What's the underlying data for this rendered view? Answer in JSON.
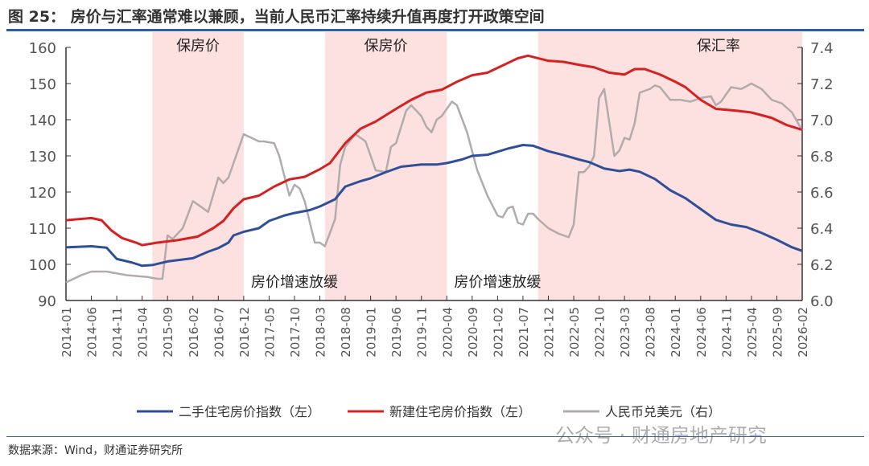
{
  "title": "图 25：  房价与汇率通常难以兼顾，当前人民币汇率持续升值再度打开政策空间",
  "source": "数据来源：Wind，财通证券研究所",
  "watermark": "公众号 · 财通房地产研究",
  "chart_data": {
    "type": "line",
    "title": "",
    "y_left": {
      "range": [
        90,
        160
      ],
      "ticks": [
        "90",
        "100",
        "110",
        "120",
        "130",
        "140",
        "150",
        "160"
      ]
    },
    "y_right": {
      "range": [
        6.0,
        7.4
      ],
      "ticks": [
        "6.0",
        "6.2",
        "6.4",
        "6.6",
        "6.8",
        "7.0",
        "7.2",
        "7.4"
      ]
    },
    "x_ticks": [
      "2014-01",
      "2014-06",
      "2014-11",
      "2015-04",
      "2015-09",
      "2016-02",
      "2016-07",
      "2016-12",
      "2017-05",
      "2017-10",
      "2018-03",
      "2018-08",
      "2019-01",
      "2019-06",
      "2019-11",
      "2020-04",
      "2020-09",
      "2021-02",
      "2021-07",
      "2021-12",
      "2022-05",
      "2022-10",
      "2023-03",
      "2023-08",
      "2024-01",
      "2024-06",
      "2024-11",
      "2025-04",
      "2025-09",
      "2026-02"
    ],
    "legend_position": "bottom",
    "shaded_periods": [
      {
        "start": "2015-06",
        "end": "2016-12",
        "label": "保房价",
        "bottom_label": ""
      },
      {
        "start": "2018-04",
        "end": "2020-04",
        "label": "保房价",
        "bottom_label": ""
      },
      {
        "start": "2021-10",
        "end": "2026-02",
        "label": "保汇率",
        "bottom_label": ""
      }
    ],
    "annotations": [
      {
        "text": "房价增速放缓",
        "near": "2017-10"
      },
      {
        "text": "房价增速放缓",
        "near": "2021-02"
      }
    ],
    "colors": {
      "shade": "#fde0e0",
      "blue": "#2f4f98",
      "red": "#d42222",
      "gray": "#b3abab"
    },
    "series": [
      {
        "name": "二手住宅房价指数（左）",
        "axis": "left",
        "color": "#2f4f98",
        "points": [
          [
            "2014-01",
            104.7
          ],
          [
            "2014-06",
            105.0
          ],
          [
            "2014-09",
            104.6
          ],
          [
            "2014-11",
            101.5
          ],
          [
            "2015-02",
            100.5
          ],
          [
            "2015-04",
            99.6
          ],
          [
            "2015-06",
            99.8
          ],
          [
            "2015-09",
            100.8
          ],
          [
            "2016-02",
            101.7
          ],
          [
            "2016-05",
            103.5
          ],
          [
            "2016-07",
            104.5
          ],
          [
            "2016-09",
            106
          ],
          [
            "2016-10",
            108
          ],
          [
            "2016-12",
            109
          ],
          [
            "2017-03",
            110
          ],
          [
            "2017-05",
            112
          ],
          [
            "2017-08",
            113.5
          ],
          [
            "2017-10",
            114.2
          ],
          [
            "2018-01",
            115
          ],
          [
            "2018-03",
            116
          ],
          [
            "2018-06",
            118
          ],
          [
            "2018-08",
            121.5
          ],
          [
            "2018-11",
            123
          ],
          [
            "2019-01",
            123.8
          ],
          [
            "2019-04",
            125.5
          ],
          [
            "2019-07",
            127
          ],
          [
            "2019-11",
            127.6
          ],
          [
            "2020-02",
            127.6
          ],
          [
            "2020-04",
            128
          ],
          [
            "2020-07",
            129
          ],
          [
            "2020-09",
            130
          ],
          [
            "2020-12",
            130.3
          ],
          [
            "2021-04",
            132
          ],
          [
            "2021-07",
            133
          ],
          [
            "2021-09",
            132.8
          ],
          [
            "2021-12",
            131.3
          ],
          [
            "2022-03",
            130.2
          ],
          [
            "2022-06",
            129
          ],
          [
            "2022-08",
            128.3
          ],
          [
            "2022-11",
            126.5
          ],
          [
            "2023-02",
            125.8
          ],
          [
            "2023-04",
            126.2
          ],
          [
            "2023-06",
            125.6
          ],
          [
            "2023-09",
            123.6
          ],
          [
            "2023-12",
            120.5
          ],
          [
            "2024-03",
            118.3
          ],
          [
            "2024-06",
            115.3
          ],
          [
            "2024-09",
            112.3
          ],
          [
            "2024-12",
            111
          ],
          [
            "2025-03",
            110.3
          ],
          [
            "2025-06",
            108.7
          ],
          [
            "2025-09",
            106.8
          ],
          [
            "2025-12",
            104.7
          ],
          [
            "2026-02",
            103.7
          ]
        ]
      },
      {
        "name": "新建住宅房价指数（左）",
        "axis": "left",
        "color": "#d42222",
        "points": [
          [
            "2014-01",
            112.2
          ],
          [
            "2014-06",
            112.8
          ],
          [
            "2014-08",
            112.2
          ],
          [
            "2014-10",
            109.3
          ],
          [
            "2014-12",
            107.3
          ],
          [
            "2015-03",
            105.9
          ],
          [
            "2015-04",
            105.3
          ],
          [
            "2015-07",
            106
          ],
          [
            "2015-11",
            106.7
          ],
          [
            "2016-03",
            107.7
          ],
          [
            "2016-06",
            110
          ],
          [
            "2016-08",
            112
          ],
          [
            "2016-10",
            115.5
          ],
          [
            "2016-12",
            118
          ],
          [
            "2017-03",
            119
          ],
          [
            "2017-06",
            121.5
          ],
          [
            "2017-09",
            123.5
          ],
          [
            "2017-12",
            124.2
          ],
          [
            "2018-03",
            126.3
          ],
          [
            "2018-05",
            128
          ],
          [
            "2018-08",
            133.5
          ],
          [
            "2018-11",
            137.5
          ],
          [
            "2019-02",
            139.5
          ],
          [
            "2019-06",
            143
          ],
          [
            "2019-09",
            145.5
          ],
          [
            "2019-12",
            147.5
          ],
          [
            "2020-03",
            148.3
          ],
          [
            "2020-06",
            150.5
          ],
          [
            "2020-09",
            152.3
          ],
          [
            "2020-12",
            153
          ],
          [
            "2021-03",
            155
          ],
          [
            "2021-06",
            157
          ],
          [
            "2021-08",
            157.7
          ],
          [
            "2021-12",
            156.3
          ],
          [
            "2022-03",
            156
          ],
          [
            "2022-06",
            155.2
          ],
          [
            "2022-09",
            154.5
          ],
          [
            "2022-12",
            153
          ],
          [
            "2023-03",
            152.5
          ],
          [
            "2023-05",
            154
          ],
          [
            "2023-07",
            154
          ],
          [
            "2023-10",
            152.5
          ],
          [
            "2024-01",
            150.5
          ],
          [
            "2024-03",
            149
          ],
          [
            "2024-06",
            145.5
          ],
          [
            "2024-09",
            143
          ],
          [
            "2025-01",
            142.5
          ],
          [
            "2025-04",
            142
          ],
          [
            "2025-08",
            140.5
          ],
          [
            "2025-11",
            138.5
          ],
          [
            "2026-02",
            137.2
          ]
        ]
      },
      {
        "name": "人民币兑美元（右）",
        "axis": "right",
        "color": "#b3abab",
        "points": [
          [
            "2014-01",
            6.1
          ],
          [
            "2014-04",
            6.14
          ],
          [
            "2014-06",
            6.16
          ],
          [
            "2014-09",
            6.16
          ],
          [
            "2015-01",
            6.14
          ],
          [
            "2015-05",
            6.13
          ],
          [
            "2015-07",
            6.12
          ],
          [
            "2015-08",
            6.12
          ],
          [
            "2015-09",
            6.36
          ],
          [
            "2015-10",
            6.34
          ],
          [
            "2015-12",
            6.4
          ],
          [
            "2016-02",
            6.55
          ],
          [
            "2016-05",
            6.49
          ],
          [
            "2016-07",
            6.68
          ],
          [
            "2016-08",
            6.65
          ],
          [
            "2016-09",
            6.68
          ],
          [
            "2016-12",
            6.92
          ],
          [
            "2017-03",
            6.88
          ],
          [
            "2017-04",
            6.88
          ],
          [
            "2017-06",
            6.87
          ],
          [
            "2017-07",
            6.8
          ],
          [
            "2017-09",
            6.58
          ],
          [
            "2017-10",
            6.64
          ],
          [
            "2017-11",
            6.62
          ],
          [
            "2017-12",
            6.55
          ],
          [
            "2018-02",
            6.32
          ],
          [
            "2018-03",
            6.32
          ],
          [
            "2018-04",
            6.3
          ],
          [
            "2018-06",
            6.45
          ],
          [
            "2018-07",
            6.75
          ],
          [
            "2018-08",
            6.85
          ],
          [
            "2018-10",
            6.92
          ],
          [
            "2018-12",
            6.88
          ],
          [
            "2019-02",
            6.72
          ],
          [
            "2019-04",
            6.71
          ],
          [
            "2019-05",
            6.85
          ],
          [
            "2019-06",
            6.87
          ],
          [
            "2019-08",
            7.05
          ],
          [
            "2019-09",
            7.08
          ],
          [
            "2019-11",
            7.02
          ],
          [
            "2019-12",
            6.96
          ],
          [
            "2020-01",
            6.93
          ],
          [
            "2020-02",
            7.0
          ],
          [
            "2020-03",
            7.02
          ],
          [
            "2020-05",
            7.1
          ],
          [
            "2020-06",
            7.08
          ],
          [
            "2020-08",
            6.93
          ],
          [
            "2020-10",
            6.72
          ],
          [
            "2020-12",
            6.58
          ],
          [
            "2021-02",
            6.47
          ],
          [
            "2021-03",
            6.46
          ],
          [
            "2021-04",
            6.51
          ],
          [
            "2021-05",
            6.52
          ],
          [
            "2021-06",
            6.43
          ],
          [
            "2021-07",
            6.42
          ],
          [
            "2021-08",
            6.48
          ],
          [
            "2021-09",
            6.48
          ],
          [
            "2021-10",
            6.45
          ],
          [
            "2021-12",
            6.4
          ],
          [
            "2022-02",
            6.37
          ],
          [
            "2022-04",
            6.35
          ],
          [
            "2022-05",
            6.42
          ],
          [
            "2022-06",
            6.71
          ],
          [
            "2022-07",
            6.71
          ],
          [
            "2022-08",
            6.74
          ],
          [
            "2022-09",
            6.8
          ],
          [
            "2022-10",
            7.12
          ],
          [
            "2022-11",
            7.17
          ],
          [
            "2023-01",
            6.8
          ],
          [
            "2023-02",
            6.83
          ],
          [
            "2023-03",
            6.9
          ],
          [
            "2023-04",
            6.89
          ],
          [
            "2023-05",
            6.98
          ],
          [
            "2023-06",
            7.15
          ],
          [
            "2023-08",
            7.17
          ],
          [
            "2023-09",
            7.19
          ],
          [
            "2023-10",
            7.18
          ],
          [
            "2023-12",
            7.11
          ],
          [
            "2024-02",
            7.11
          ],
          [
            "2024-04",
            7.1
          ],
          [
            "2024-06",
            7.12
          ],
          [
            "2024-08",
            7.13
          ],
          [
            "2024-09",
            7.08
          ],
          [
            "2024-10",
            7.1
          ],
          [
            "2024-12",
            7.18
          ],
          [
            "2025-02",
            7.17
          ],
          [
            "2025-04",
            7.2
          ],
          [
            "2025-06",
            7.17
          ],
          [
            "2025-08",
            7.11
          ],
          [
            "2025-10",
            7.09
          ],
          [
            "2025-12",
            7.04
          ],
          [
            "2026-02",
            6.94
          ]
        ]
      }
    ]
  }
}
